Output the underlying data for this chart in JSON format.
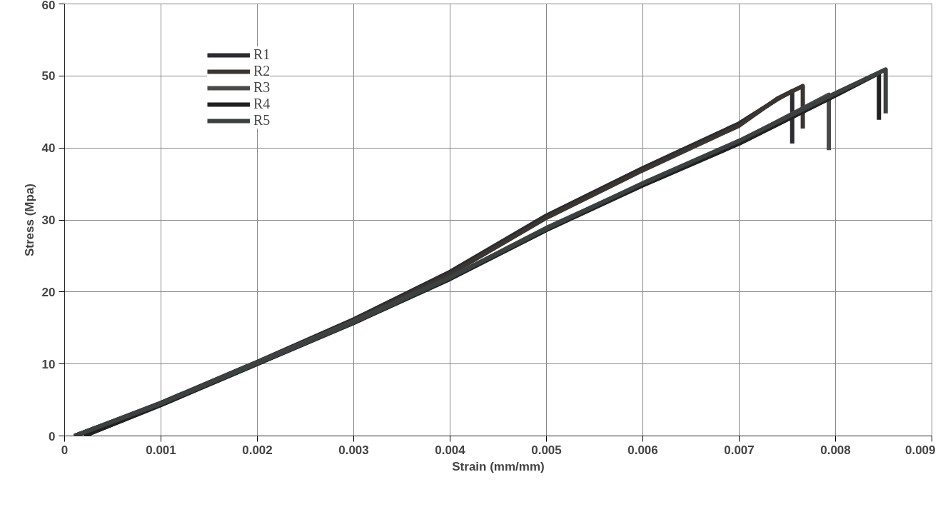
{
  "chart_data": {
    "type": "line",
    "xlabel": "Strain (mm/mm)",
    "ylabel": "Stress (Mpa)",
    "xlim": [
      0,
      0.009
    ],
    "ylim": [
      0,
      60
    ],
    "xticks": [
      0,
      0.001,
      0.002,
      0.003,
      0.004,
      0.005,
      0.006,
      0.007,
      0.008,
      0.009
    ],
    "yticks": [
      0,
      10,
      20,
      30,
      40,
      50,
      60
    ],
    "grid": true,
    "legend": "top left",
    "marker": "none",
    "line_style": "solid",
    "series": [
      {
        "name": "R1",
        "color": "#2b2b30",
        "x": [
          0.0001,
          0.001,
          0.002,
          0.003,
          0.004,
          0.005,
          0.006,
          0.007,
          0.0074,
          0.00755,
          0.00755
        ],
        "values": [
          0,
          4.6,
          10.3,
          16.2,
          22.8,
          30.6,
          37.2,
          43.4,
          46.8,
          47.9,
          40.6
        ]
      },
      {
        "name": "R2",
        "color": "#3a3530",
        "x": [
          0.0002,
          0.001,
          0.002,
          0.003,
          0.004,
          0.005,
          0.006,
          0.007,
          0.0074,
          0.00766,
          0.00766
        ],
        "values": [
          0,
          4.4,
          10.1,
          16.0,
          22.5,
          30.3,
          36.9,
          43.1,
          46.9,
          48.6,
          42.7
        ]
      },
      {
        "name": "R3",
        "color": "#4a4a48",
        "x": [
          0.0001,
          0.001,
          0.002,
          0.003,
          0.004,
          0.005,
          0.006,
          0.007,
          0.00793,
          0.00793
        ],
        "values": [
          0,
          4.5,
          10.2,
          15.9,
          22.0,
          28.9,
          35.0,
          40.9,
          47.4,
          39.7
        ]
      },
      {
        "name": "R4",
        "color": "#202020",
        "x": [
          0.0002,
          0.001,
          0.002,
          0.003,
          0.004,
          0.005,
          0.006,
          0.007,
          0.008,
          0.00845,
          0.00845
        ],
        "values": [
          0,
          4.3,
          10.0,
          15.7,
          21.8,
          28.6,
          34.8,
          40.6,
          47.3,
          50.4,
          43.9
        ]
      },
      {
        "name": "R5",
        "color": "#3b4040",
        "x": [
          0.0001,
          0.001,
          0.002,
          0.003,
          0.004,
          0.005,
          0.006,
          0.007,
          0.008,
          0.00852,
          0.00852
        ],
        "values": [
          0,
          4.5,
          10.1,
          15.8,
          22.0,
          28.8,
          35.1,
          41.0,
          47.6,
          50.9,
          44.8
        ]
      }
    ]
  }
}
